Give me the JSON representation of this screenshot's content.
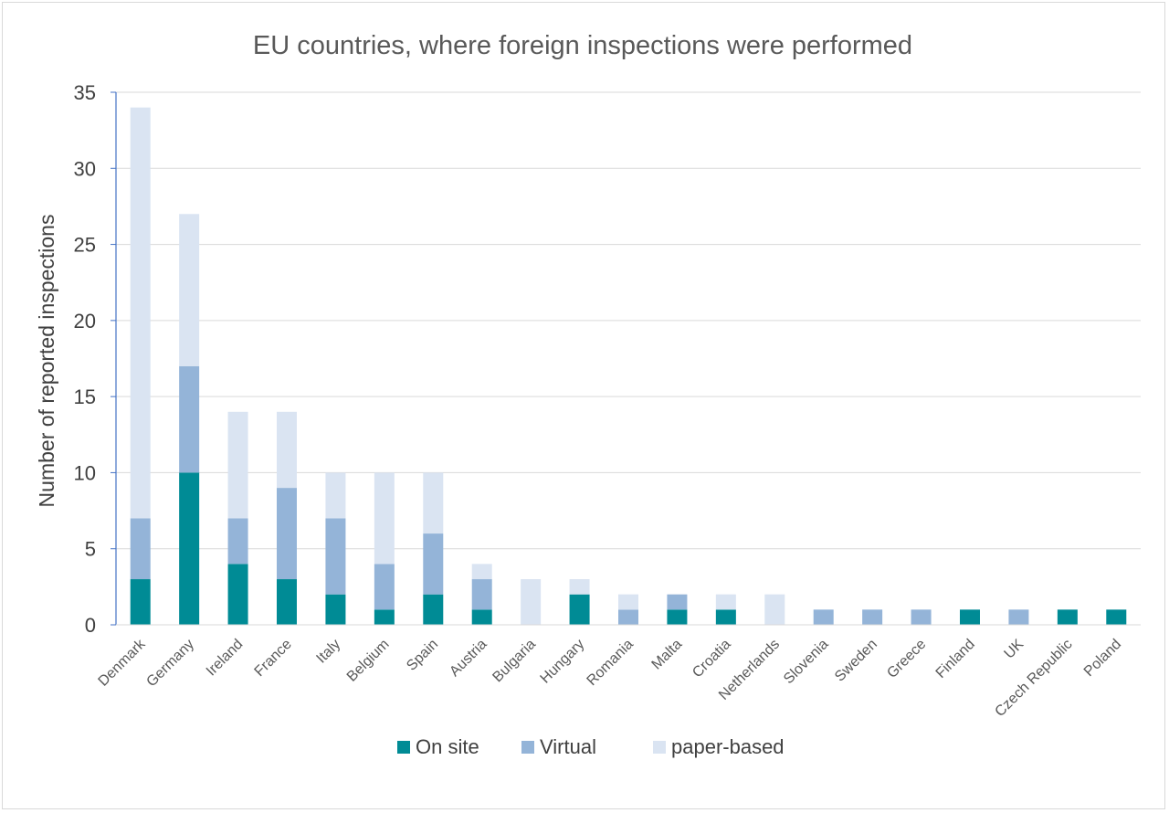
{
  "chart_data": {
    "type": "bar",
    "stacked": true,
    "title": "EU countries, where foreign inspections were performed",
    "xlabel": "",
    "ylabel": "Number of reported inspections",
    "ylim": [
      0,
      35
    ],
    "yticks": [
      0,
      5,
      10,
      15,
      20,
      25,
      30,
      35
    ],
    "grid": true,
    "legend_position": "bottom",
    "categories": [
      "Denmark",
      "Germany",
      "Ireland",
      "France",
      "Italy",
      "Belgium",
      "Spain",
      "Austria",
      "Bulgaria",
      "Hungary",
      "Romania",
      "Malta",
      "Croatia",
      "Netherlands",
      "Slovenia",
      "Sweden",
      "Greece",
      "Finland",
      "UK",
      "Czech Republic",
      "Poland"
    ],
    "series": [
      {
        "name": "On site",
        "color": "#008b95",
        "values": [
          3,
          10,
          4,
          3,
          2,
          1,
          2,
          1,
          0,
          2,
          0,
          1,
          1,
          0,
          0,
          0,
          0,
          1,
          0,
          1,
          1
        ]
      },
      {
        "name": "Virtual",
        "color": "#94b4d8",
        "values": [
          4,
          7,
          3,
          6,
          5,
          3,
          4,
          2,
          0,
          0,
          1,
          1,
          0,
          0,
          1,
          1,
          1,
          0,
          1,
          0,
          0
        ]
      },
      {
        "name": "paper-based",
        "color": "#dae4f2",
        "values": [
          27,
          10,
          7,
          5,
          3,
          6,
          4,
          1,
          3,
          1,
          1,
          0,
          1,
          2,
          0,
          0,
          0,
          0,
          0,
          0,
          0
        ]
      }
    ]
  }
}
